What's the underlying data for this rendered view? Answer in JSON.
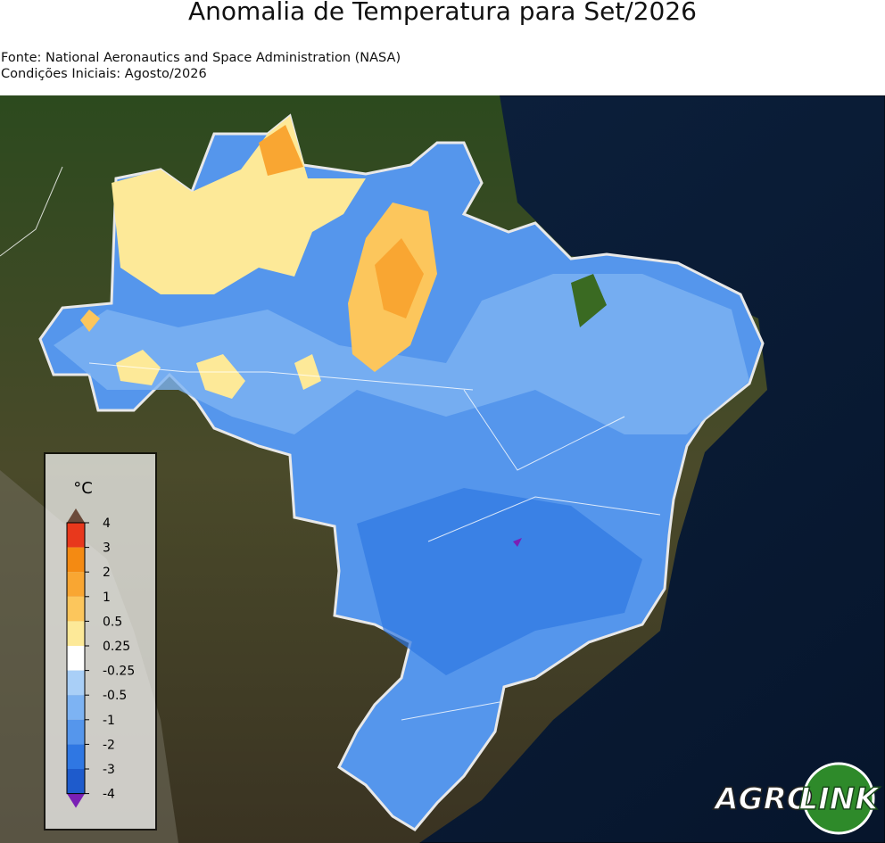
{
  "header": {
    "title": "Anomalia de Temperatura para Set/2026",
    "source": "Fonte: National Aeronautics and Space Administration (NASA)",
    "initial_conditions": "Condições Iniciais: Agosto/2026"
  },
  "legend": {
    "unit": "°C",
    "ticks": [
      4,
      3,
      2,
      1,
      0.5,
      0.25,
      -0.25,
      -0.5,
      -1,
      -2,
      -3,
      -4
    ],
    "colors": [
      "#e8381c",
      "#f48a12",
      "#f9a632",
      "#fcc65c",
      "#fde998",
      "#ffffff",
      "#a9cff7",
      "#7db3f3",
      "#5596ec",
      "#2f77e3",
      "#1e5bcc"
    ],
    "over_color": "#6b4a3a",
    "under_color": "#7a20b5"
  },
  "logo": {
    "left": "AGRO",
    "right": "LINK"
  }
}
